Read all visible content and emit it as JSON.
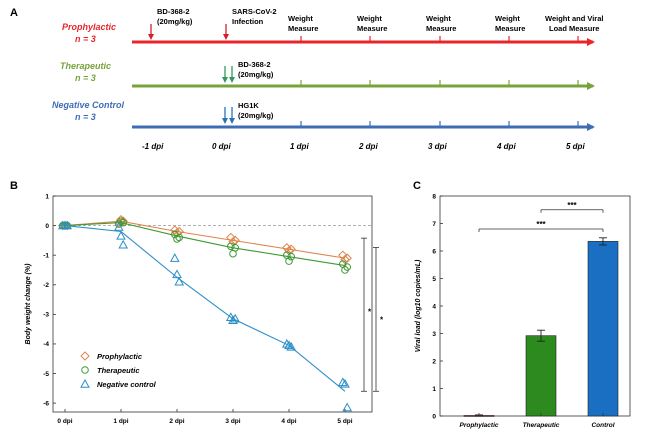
{
  "panel_a": {
    "label": "A",
    "groups": [
      {
        "name": "Prophylactic",
        "n": "n = 3",
        "color": "#e8262a"
      },
      {
        "name": "Therapeutic",
        "n": "n = 3",
        "color": "#77a33c"
      },
      {
        "name": "Negative Control",
        "n": "n = 3",
        "color": "#3f6db5"
      }
    ],
    "annotations": {
      "bd_pre": "BD-368-2",
      "bd_pre_dose": "(20mg/kg)",
      "infection_1": "SARS-CoV-2",
      "infection_2": "Infection",
      "weight_1": "Weight",
      "weight_2": "Measure",
      "final_1": "Weight and Viral",
      "final_2": "Load Measure",
      "bd_ther": "BD-368-2",
      "bd_ther_dose": "(20mg/kg)",
      "hg1k": "HG1K",
      "hg1k_dose": "(20mg/kg)"
    },
    "dpi_labels": [
      "-1 dpi",
      "0 dpi",
      "1 dpi",
      "2 dpi",
      "3 dpi",
      "4 dpi",
      "5 dpi"
    ]
  },
  "chart_data": [
    {
      "type": "line",
      "panel": "B",
      "ylabel": "Body weight change (%)",
      "x": [
        0,
        1,
        2,
        3,
        4,
        5
      ],
      "x_tick_labels": [
        "0 dpi",
        "1 dpi",
        "2 dpi",
        "3 dpi",
        "4 dpi",
        "5 dpi"
      ],
      "ylim": [
        -6.3,
        1
      ],
      "y_ticks": [
        1,
        0,
        -1,
        -2,
        -3,
        -4,
        -5,
        -6
      ],
      "series": [
        {
          "name": "Prophylactic",
          "color": "#e0834a",
          "marker": "diamond",
          "values": [
            0,
            0.15,
            -0.2,
            -0.5,
            -0.8,
            -1.1
          ],
          "points": [
            [
              0,
              0
            ],
            [
              0,
              0
            ],
            [
              0,
              0
            ],
            [
              1,
              0.1
            ],
            [
              1,
              0.2
            ],
            [
              1,
              0.15
            ],
            [
              2,
              -0.15
            ],
            [
              2,
              -0.25
            ],
            [
              2,
              -0.2
            ],
            [
              3,
              -0.4
            ],
            [
              3,
              -0.55
            ],
            [
              3,
              -0.5
            ],
            [
              4,
              -0.75
            ],
            [
              4,
              -0.85
            ],
            [
              4,
              -0.8
            ],
            [
              5,
              -1.0
            ],
            [
              5,
              -1.15
            ],
            [
              5,
              -1.1
            ]
          ]
        },
        {
          "name": "Therapeutic",
          "color": "#3e9a35",
          "marker": "circle",
          "values": [
            0,
            0.1,
            -0.35,
            -0.75,
            -1.05,
            -1.35
          ],
          "points": [
            [
              0,
              0
            ],
            [
              0,
              0
            ],
            [
              0,
              0
            ],
            [
              1,
              0.05
            ],
            [
              1,
              0.15
            ],
            [
              1,
              0.1
            ],
            [
              2,
              -0.3
            ],
            [
              2,
              -0.45
            ],
            [
              2,
              -0.4
            ],
            [
              3,
              -0.7
            ],
            [
              3,
              -0.95
            ],
            [
              3,
              -0.75
            ],
            [
              4,
              -1.0
            ],
            [
              4,
              -1.2
            ],
            [
              4,
              -1.05
            ],
            [
              5,
              -1.3
            ],
            [
              5,
              -1.5
            ],
            [
              5,
              -1.4
            ]
          ]
        },
        {
          "name": "Negative control",
          "color": "#2a8fc7",
          "marker": "triangle",
          "values": [
            0,
            -0.2,
            -1.75,
            -3.15,
            -4.05,
            -5.6
          ],
          "points": [
            [
              0,
              0
            ],
            [
              0,
              0
            ],
            [
              0,
              0
            ],
            [
              1,
              -0.05
            ],
            [
              1,
              -0.35
            ],
            [
              1,
              -0.65
            ],
            [
              2,
              -1.1
            ],
            [
              2,
              -1.65
            ],
            [
              2,
              -1.9
            ],
            [
              3,
              -3.1
            ],
            [
              3,
              -3.2
            ],
            [
              3,
              -3.15
            ],
            [
              4,
              -4.0
            ],
            [
              4,
              -4.05
            ],
            [
              4,
              -4.1
            ],
            [
              5,
              -5.3
            ],
            [
              5,
              -5.35
            ],
            [
              5,
              -6.15
            ]
          ]
        }
      ],
      "significance": [
        "*",
        "*"
      ],
      "legend": "bottom-left"
    },
    {
      "type": "bar",
      "panel": "C",
      "ylabel": "Viral load (log10 copies/mL)",
      "categories": [
        "Prophylactic",
        "Therapeutic",
        "Control"
      ],
      "values": [
        0.02,
        2.92,
        6.35
      ],
      "errors": [
        0.02,
        0.2,
        0.13
      ],
      "colors": [
        "#c0282a",
        "#2c8a1f",
        "#1a6fc2"
      ],
      "ylim": [
        0,
        8
      ],
      "y_ticks": [
        0,
        1,
        2,
        3,
        4,
        5,
        6,
        7,
        8
      ],
      "significance": [
        "***",
        "***"
      ]
    }
  ],
  "panel_labels": {
    "b": "B",
    "c": "C"
  }
}
